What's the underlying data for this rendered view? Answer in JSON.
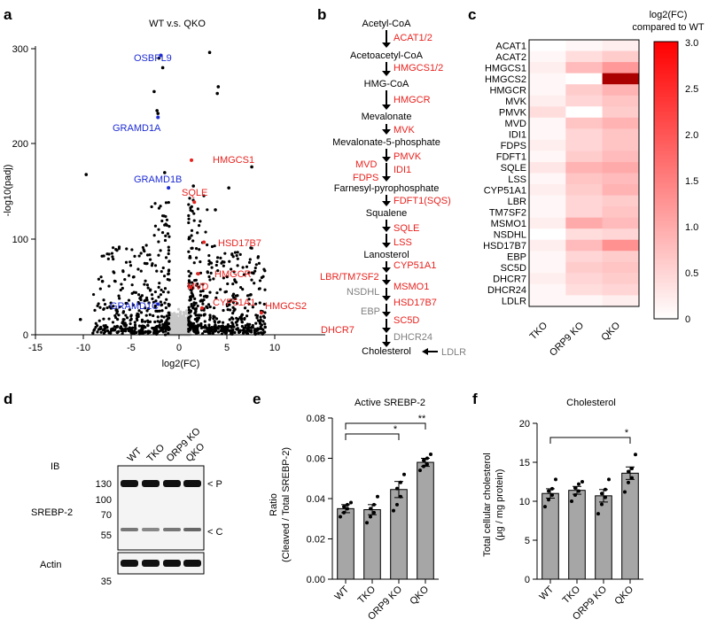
{
  "panels": {
    "a": "a",
    "b": "b",
    "c": "c",
    "d": "d",
    "e": "e",
    "f": "f"
  },
  "volcano": {
    "title": "WT v.s. QKO",
    "xlabel": "log2(FC)",
    "ylabel": "-log10(padj)",
    "xticks": [
      "-15",
      "-10",
      "-5",
      "0",
      "5",
      "10"
    ],
    "yticks": [
      "0",
      "100",
      "200",
      "300"
    ],
    "labels_blue": [
      "OSBPL9",
      "GRAMD1A",
      "GRAMD1B",
      "GRAMD1C"
    ],
    "labels_red": [
      "HMGCS1",
      "SQLE",
      "HSD17B7",
      "HMGCR",
      "MVD",
      "CYP51A1",
      "HMGCS2"
    ],
    "colors": {
      "up": "#e8231f",
      "down": "#1d2bd4",
      "ns": "#c8c8c8",
      "dot": "#000000"
    }
  },
  "pathway": {
    "metabolites": [
      "Acetyl-CoA",
      "Acetoacetyl-CoA",
      "HMG-CoA",
      "Mevalonate",
      "Mevalonate-5-phosphate",
      "Farnesyl-pyrophosphate",
      "Squalene",
      "Lanosterol",
      "Cholesterol"
    ],
    "enzymes": [
      "ACAT1/2",
      "HMGCS1/2",
      "HMGCR",
      "MVK",
      "PMVK",
      "IDI1",
      "MVD",
      "FDPS",
      "FDFT1(SQS)",
      "SQLE",
      "LSS",
      "CYP51A1",
      "LBR/TM7SF2",
      "MSMO1",
      "HSD17B7",
      "SC5D",
      "DHCR7"
    ],
    "gray_enzymes": [
      "NSDHL",
      "EBP",
      "DHCR24",
      "LDLR"
    ]
  },
  "heatmap": {
    "legend_title_1": "log2(FC)",
    "legend_title_2": "compared to WT",
    "columns": [
      "TKO",
      "ORP9 KO",
      "QKO"
    ],
    "genes": [
      "ACAT1",
      "ACAT2",
      "HMGCS1",
      "HMGCS2",
      "HMGCR",
      "MVK",
      "PMVK",
      "MVD",
      "IDI1",
      "FDPS",
      "FDFT1",
      "SQLE",
      "LSS",
      "CYP51A1",
      "LBR",
      "TM7SF2",
      "MSMO1",
      "NSDHL",
      "HSD17B7",
      "EBP",
      "SC5D",
      "DHCR7",
      "DHCR24",
      "LDLR"
    ],
    "values": [
      [
        0.0,
        0.1,
        0.2
      ],
      [
        0.1,
        0.4,
        0.6
      ],
      [
        0.2,
        0.8,
        1.2
      ],
      [
        0.1,
        0.0,
        3.0
      ],
      [
        0.1,
        0.6,
        0.9
      ],
      [
        0.2,
        0.5,
        0.7
      ],
      [
        0.4,
        0.0,
        0.6
      ],
      [
        0.1,
        0.7,
        0.9
      ],
      [
        0.1,
        0.5,
        0.7
      ],
      [
        0.2,
        0.5,
        0.7
      ],
      [
        0.1,
        0.6,
        0.8
      ],
      [
        0.3,
        0.9,
        1.0
      ],
      [
        0.1,
        0.7,
        0.8
      ],
      [
        0.2,
        0.6,
        0.9
      ],
      [
        0.1,
        0.5,
        0.6
      ],
      [
        0.1,
        0.5,
        0.7
      ],
      [
        0.2,
        1.0,
        0.8
      ],
      [
        0.0,
        0.4,
        0.5
      ],
      [
        0.2,
        0.8,
        1.3
      ],
      [
        0.1,
        0.5,
        0.6
      ],
      [
        0.1,
        0.6,
        0.7
      ],
      [
        0.2,
        0.5,
        0.6
      ],
      [
        0.1,
        0.4,
        0.5
      ],
      [
        0.1,
        0.1,
        0.2
      ]
    ],
    "scale_ticks": [
      "0",
      "0.5",
      "1.0",
      "1.5",
      "2.0",
      "2.5",
      "3.0"
    ],
    "scale_max": 3.0
  },
  "blot": {
    "ib_label": "IB",
    "lanes": [
      "WT",
      "TKO",
      "ORP9 KO",
      "QKO"
    ],
    "srebp_label": "SREBP-2",
    "actin_label": "Actin",
    "markers_srebp": [
      "130",
      "100",
      "70",
      "55"
    ],
    "markers_actin": [
      "35"
    ],
    "band_p": "< P",
    "band_c": "< C"
  },
  "chart_data": [
    {
      "type": "bar",
      "title": "Active SREBP-2",
      "ylabel": "Ratio",
      "ylabel2": "(Cleaved / Total SREBP-2)",
      "categories": [
        "WT",
        "TKO",
        "ORP9 KO",
        "QKO"
      ],
      "values": [
        0.035,
        0.0345,
        0.0445,
        0.058
      ],
      "errors": [
        0.002,
        0.0025,
        0.004,
        0.002
      ],
      "points": [
        [
          0.031,
          0.033,
          0.035,
          0.036,
          0.037,
          0.038
        ],
        [
          0.028,
          0.031,
          0.033,
          0.035,
          0.037,
          0.041
        ],
        [
          0.034,
          0.037,
          0.041,
          0.045,
          0.048,
          0.052
        ],
        [
          0.054,
          0.056,
          0.057,
          0.059,
          0.06,
          0.062
        ]
      ],
      "ylim": [
        0,
        0.08
      ],
      "yticks": [
        "0.00",
        "0.02",
        "0.04",
        "0.06",
        "0.08"
      ],
      "significance": [
        {
          "from": 0,
          "to": 2,
          "label": "*"
        },
        {
          "from": 0,
          "to": 3,
          "label": "**"
        }
      ]
    },
    {
      "type": "bar",
      "title": "Cholesterol",
      "ylabel": "Total cellular cholesterol",
      "ylabel2": "(μg / mg protein)",
      "categories": [
        "WT",
        "TKO",
        "ORP9 KO",
        "QKO"
      ],
      "values": [
        11.0,
        11.4,
        10.7,
        13.6
      ],
      "errors": [
        0.6,
        0.5,
        0.8,
        0.8
      ],
      "points": [
        [
          9.3,
          10.2,
          10.8,
          11.3,
          11.6,
          12.8
        ],
        [
          10.0,
          10.8,
          11.3,
          11.7,
          12.2,
          12.5
        ],
        [
          8.4,
          9.6,
          10.5,
          11.0,
          11.5,
          12.8
        ],
        [
          11.2,
          12.4,
          13.0,
          13.8,
          14.2,
          16.0
        ]
      ],
      "ylim": [
        0,
        20
      ],
      "yticks": [
        "0",
        "5",
        "10",
        "15",
        "20"
      ],
      "significance": [
        {
          "from": 0,
          "to": 3,
          "label": "*"
        }
      ]
    }
  ]
}
